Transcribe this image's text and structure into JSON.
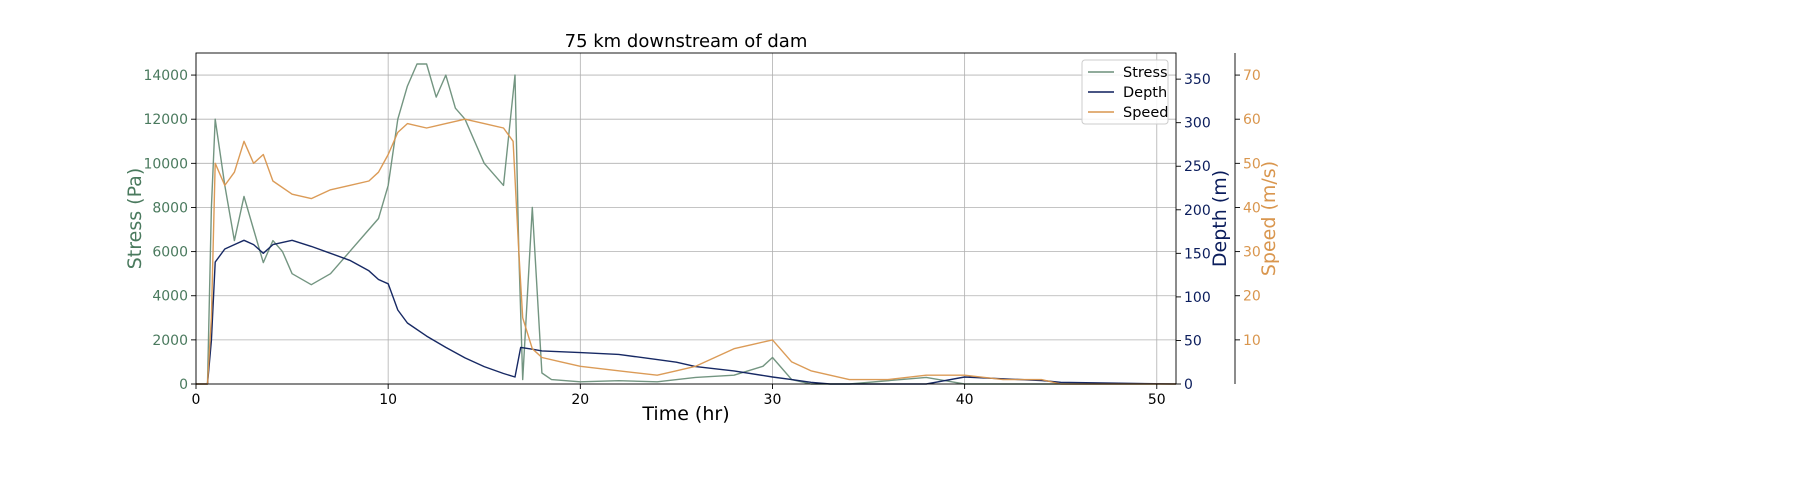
{
  "chart_data": {
    "type": "line",
    "title": "75 km downstream of dam",
    "xlabel": "Time (hr)",
    "xlim": [
      0,
      51
    ],
    "x_ticks": [
      0,
      10,
      20,
      30,
      40,
      50
    ],
    "grid": true,
    "legend_placement": "top-right",
    "axes": [
      {
        "id": "stress",
        "label": "Stress (Pa)",
        "side": "left",
        "color": "#4a7a5e",
        "ylim": [
          0,
          15000
        ],
        "ticks": [
          0,
          2000,
          4000,
          6000,
          8000,
          10000,
          12000,
          14000
        ]
      },
      {
        "id": "depth",
        "label": "Depth (m)",
        "side": "right",
        "color": "#0b1d5c",
        "ylim": [
          0,
          380
        ],
        "ticks": [
          0,
          50,
          100,
          150,
          200,
          250,
          300,
          350
        ]
      },
      {
        "id": "speed",
        "label": "Speed (m/s)",
        "side": "right-outer",
        "color": "#d9964e",
        "ylim": [
          0,
          75
        ],
        "ticks": [
          10,
          20,
          30,
          40,
          50,
          60,
          70
        ]
      }
    ],
    "series": [
      {
        "name": "Stress",
        "axis": "stress",
        "color": "#6b8f7a",
        "x": [
          0,
          0.6,
          0.8,
          1.0,
          1.5,
          2.0,
          2.5,
          3.0,
          3.5,
          4.0,
          4.5,
          5.0,
          6.0,
          7.0,
          8.0,
          9.0,
          9.5,
          10.0,
          10.5,
          11.0,
          11.5,
          12.0,
          12.5,
          13.0,
          13.5,
          14.0,
          15.0,
          16.0,
          16.6,
          16.8,
          17.0,
          17.5,
          18.0,
          18.5,
          20,
          22,
          24,
          26,
          28,
          29.5,
          30.0,
          31.0,
          32.0,
          34.0,
          38.0,
          40.0,
          45.0,
          51.0
        ],
        "y": [
          0,
          0,
          8000,
          12000,
          9000,
          6500,
          8500,
          7000,
          5500,
          6500,
          6000,
          5000,
          4500,
          5000,
          6000,
          7000,
          7500,
          9000,
          12000,
          13500,
          14500,
          14500,
          13000,
          14000,
          12500,
          12000,
          10000,
          9000,
          14000,
          6000,
          200,
          8000,
          500,
          200,
          100,
          150,
          100,
          300,
          400,
          800,
          1200,
          200,
          0,
          0,
          300,
          0,
          0,
          0
        ]
      },
      {
        "name": "Depth",
        "axis": "depth",
        "color": "#0b1d5c",
        "x": [
          0,
          0.6,
          0.8,
          1.0,
          1.5,
          2.0,
          2.5,
          3.0,
          3.5,
          4.0,
          5.0,
          6.0,
          7.0,
          8.0,
          9.0,
          9.5,
          10.0,
          10.5,
          11.0,
          12.0,
          13.0,
          14.0,
          15.0,
          16.0,
          16.6,
          16.9,
          17.5,
          18.0,
          20.0,
          22.0,
          24.0,
          25.0,
          26.0,
          28.0,
          30.0,
          31.0,
          32.0,
          33.0,
          38.0,
          40.0,
          42.0,
          44.0,
          45.0,
          51.0
        ],
        "y": [
          0,
          0,
          50,
          140,
          155,
          160,
          165,
          160,
          150,
          160,
          165,
          158,
          150,
          142,
          130,
          120,
          115,
          85,
          70,
          55,
          42,
          30,
          20,
          12,
          8,
          42,
          40,
          38,
          36,
          34,
          28,
          25,
          20,
          15,
          8,
          5,
          2,
          0,
          0,
          8,
          6,
          4,
          2,
          0
        ]
      },
      {
        "name": "Speed",
        "axis": "speed",
        "color": "#d9964e",
        "x": [
          0,
          0.6,
          0.8,
          1.0,
          1.5,
          2.0,
          2.5,
          3.0,
          3.5,
          4.0,
          5.0,
          6.0,
          7.0,
          8.0,
          9.0,
          9.5,
          10.0,
          10.5,
          11.0,
          12.0,
          13.0,
          14.0,
          15.0,
          16.0,
          16.5,
          16.8,
          17.0,
          17.5,
          18.0,
          19.0,
          20.0,
          22.0,
          24.0,
          25.0,
          26.0,
          27.0,
          28.0,
          29.0,
          30.0,
          31.0,
          32.0,
          34.0,
          36.0,
          38.0,
          40.0,
          42.0,
          44.0,
          45.0,
          51.0
        ],
        "y": [
          0,
          0,
          15,
          50,
          45,
          48,
          55,
          50,
          52,
          46,
          43,
          42,
          44,
          45,
          46,
          48,
          52,
          57,
          59,
          58,
          59,
          60,
          59,
          58,
          55,
          30,
          15,
          8,
          6,
          5,
          4,
          3,
          2,
          3,
          4,
          6,
          8,
          9,
          10,
          5,
          3,
          1,
          1,
          2,
          2,
          1,
          1,
          0,
          0
        ]
      }
    ]
  }
}
